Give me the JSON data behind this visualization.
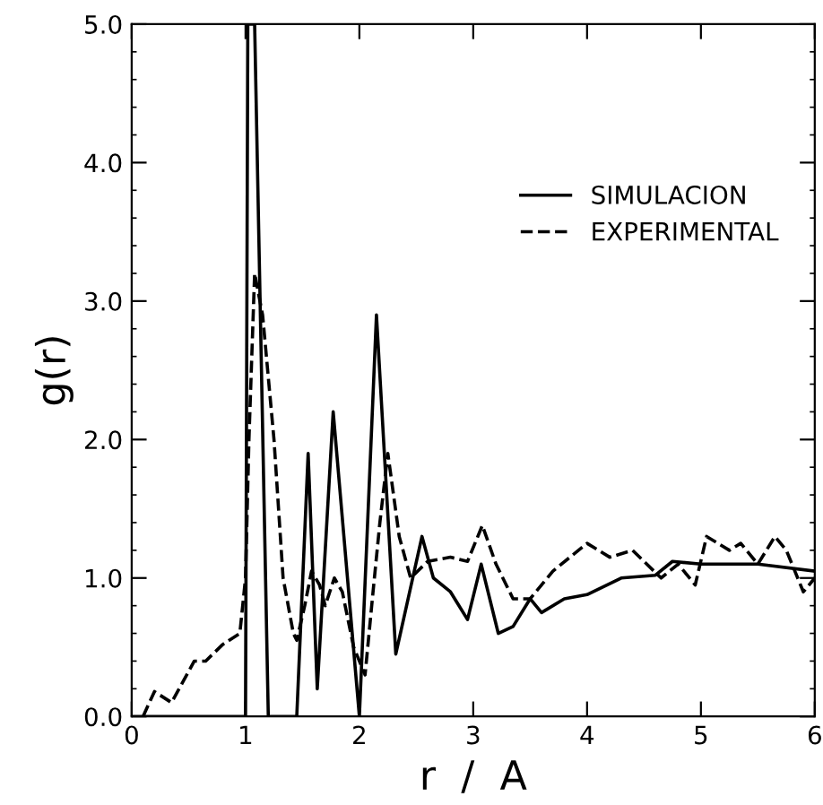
{
  "chart_data": {
    "type": "line",
    "xlabel": "r  /  A",
    "ylabel": "g(r)",
    "xlim": [
      0,
      6
    ],
    "ylim": [
      0,
      5
    ],
    "xticks": [
      0,
      1,
      2,
      3,
      4,
      5,
      6
    ],
    "yticks": [
      {
        "value": 0,
        "label": "0.0"
      },
      {
        "value": 1,
        "label": "1.0"
      },
      {
        "value": 2,
        "label": "2.0"
      },
      {
        "value": 3,
        "label": "3.0"
      },
      {
        "value": 4,
        "label": "4.0"
      },
      {
        "value": 5,
        "label": "5.0"
      }
    ],
    "grid": false,
    "legend": "top right",
    "marker": "none",
    "series": [
      {
        "name": "SIMULACION",
        "color": "#000000",
        "line_style": "solid",
        "x": [
          0,
          1.0,
          1.02,
          1.05,
          1.08,
          1.2,
          1.45,
          1.55,
          1.63,
          1.77,
          2.0,
          2.15,
          2.32,
          2.55,
          2.65,
          2.8,
          2.95,
          3.07,
          3.22,
          3.35,
          3.5,
          3.6,
          3.8,
          4.0,
          4.3,
          4.6,
          4.75,
          5.0,
          5.5,
          6.0
        ],
        "values": [
          0,
          0,
          5.0,
          5.0,
          5.0,
          0,
          0,
          1.9,
          0.2,
          2.2,
          0,
          2.9,
          0.45,
          1.3,
          1.0,
          0.9,
          0.7,
          1.1,
          0.6,
          0.65,
          0.85,
          0.75,
          0.85,
          0.88,
          1.0,
          1.02,
          1.12,
          1.1,
          1.1,
          1.05
        ]
      },
      {
        "name": "EXPERIMENTAL",
        "color": "#000000",
        "line_style": "dashed",
        "x": [
          0.1,
          0.2,
          0.35,
          0.55,
          0.65,
          0.8,
          0.95,
          1.0,
          1.03,
          1.08,
          1.15,
          1.25,
          1.33,
          1.42,
          1.45,
          1.52,
          1.58,
          1.65,
          1.7,
          1.78,
          1.85,
          1.95,
          2.05,
          2.12,
          2.18,
          2.25,
          2.35,
          2.45,
          2.6,
          2.8,
          2.95,
          3.08,
          3.2,
          3.35,
          3.5,
          3.7,
          4.0,
          4.2,
          4.4,
          4.65,
          4.8,
          4.95,
          5.05,
          5.25,
          5.35,
          5.5,
          5.65,
          5.75,
          5.9,
          6.0
        ],
        "values": [
          0,
          0.18,
          0.1,
          0.4,
          0.4,
          0.52,
          0.6,
          1.0,
          2.0,
          3.2,
          2.9,
          2.0,
          1.0,
          0.6,
          0.55,
          0.8,
          1.05,
          0.95,
          0.8,
          1.0,
          0.9,
          0.5,
          0.3,
          0.9,
          1.4,
          1.9,
          1.3,
          1.0,
          1.12,
          1.15,
          1.12,
          1.38,
          1.1,
          0.85,
          0.85,
          1.05,
          1.25,
          1.15,
          1.2,
          1.0,
          1.1,
          0.95,
          1.3,
          1.2,
          1.25,
          1.1,
          1.3,
          1.2,
          0.9,
          1.0
        ]
      }
    ]
  }
}
